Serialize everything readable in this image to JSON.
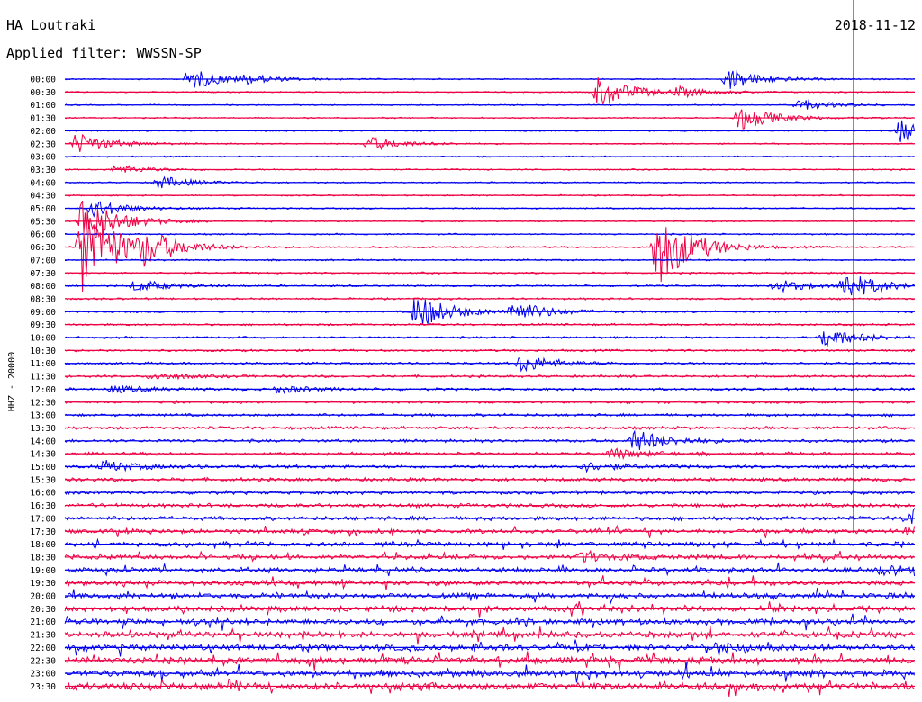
{
  "header": {
    "station": "HA Loutraki",
    "filter": "Applied filter: WWSSN-SP",
    "date": "2018-11-12"
  },
  "chart_data": {
    "type": "line",
    "title": "HA Loutraki",
    "subtitle": "Applied filter: WWSSN-SP",
    "date": "2018-11-12",
    "channel": "HHZ - 20000",
    "row_interval_minutes": 30,
    "row_labels": [
      "00:00",
      "00:30",
      "01:00",
      "01:30",
      "02:00",
      "02:30",
      "03:00",
      "03:30",
      "04:00",
      "04:30",
      "05:00",
      "05:30",
      "06:00",
      "06:30",
      "07:00",
      "07:30",
      "08:00",
      "08:30",
      "09:00",
      "09:30",
      "10:00",
      "10:30",
      "11:00",
      "11:30",
      "12:00",
      "12:30",
      "13:00",
      "13:30",
      "14:00",
      "14:30",
      "15:00",
      "15:30",
      "16:00",
      "16:30",
      "17:00",
      "17:30",
      "18:00",
      "18:30",
      "19:00",
      "19:30",
      "20:00",
      "20:30",
      "21:00",
      "21:30",
      "22:00",
      "22:30",
      "23:00",
      "23:30"
    ],
    "colors": {
      "even": "#0000ee",
      "odd": "#ee0044"
    },
    "events": [
      {
        "row": 0,
        "minute": 4.4,
        "amp": 12
      },
      {
        "row": 0,
        "minute": 6.3,
        "amp": 4
      },
      {
        "row": 0,
        "minute": 23.4,
        "amp": 12
      },
      {
        "row": 1,
        "minute": 18.8,
        "amp": 18
      },
      {
        "row": 1,
        "minute": 21.6,
        "amp": 5
      },
      {
        "row": 2,
        "minute": 25.9,
        "amp": 6
      },
      {
        "row": 3,
        "minute": 23.8,
        "amp": 14
      },
      {
        "row": 4,
        "minute": 29.5,
        "amp": 14
      },
      {
        "row": 5,
        "minute": 0.4,
        "amp": 12
      },
      {
        "row": 5,
        "minute": 10.7,
        "amp": 8
      },
      {
        "row": 7,
        "minute": 1.8,
        "amp": 5
      },
      {
        "row": 8,
        "minute": 3.3,
        "amp": 7
      },
      {
        "row": 10,
        "minute": 1.0,
        "amp": 10
      },
      {
        "row": 11,
        "minute": 0.6,
        "amp": 30
      },
      {
        "row": 13,
        "minute": 0.6,
        "amp": 55
      },
      {
        "row": 13,
        "minute": 2.8,
        "amp": 16
      },
      {
        "row": 13,
        "minute": 20.9,
        "amp": 45
      },
      {
        "row": 16,
        "minute": 2.5,
        "amp": 7
      },
      {
        "row": 16,
        "minute": 25.1,
        "amp": 7
      },
      {
        "row": 16,
        "minute": 27.5,
        "amp": 16
      },
      {
        "row": 18,
        "minute": 12.4,
        "amp": 20
      },
      {
        "row": 18,
        "minute": 15.8,
        "amp": 12
      },
      {
        "row": 20,
        "minute": 26.8,
        "amp": 12
      },
      {
        "row": 22,
        "minute": 16.1,
        "amp": 10
      },
      {
        "row": 23,
        "minute": 3.1,
        "amp": 4
      },
      {
        "row": 24,
        "minute": 1.7,
        "amp": 4
      },
      {
        "row": 24,
        "minute": 7.5,
        "amp": 4
      },
      {
        "row": 28,
        "minute": 20.1,
        "amp": 12
      },
      {
        "row": 29,
        "minute": 19.3,
        "amp": 6
      },
      {
        "row": 30,
        "minute": 1.4,
        "amp": 6
      },
      {
        "row": 30,
        "minute": 18.3,
        "amp": 5
      },
      {
        "row": 34,
        "minute": 29.8,
        "amp": 12
      },
      {
        "row": 35,
        "minute": 29.7,
        "amp": 5
      },
      {
        "row": 37,
        "minute": 18.2,
        "amp": 5
      },
      {
        "row": 38,
        "minute": 28.8,
        "amp": 5
      },
      {
        "row": 44,
        "minute": 22.9,
        "amp": 5
      }
    ]
  }
}
